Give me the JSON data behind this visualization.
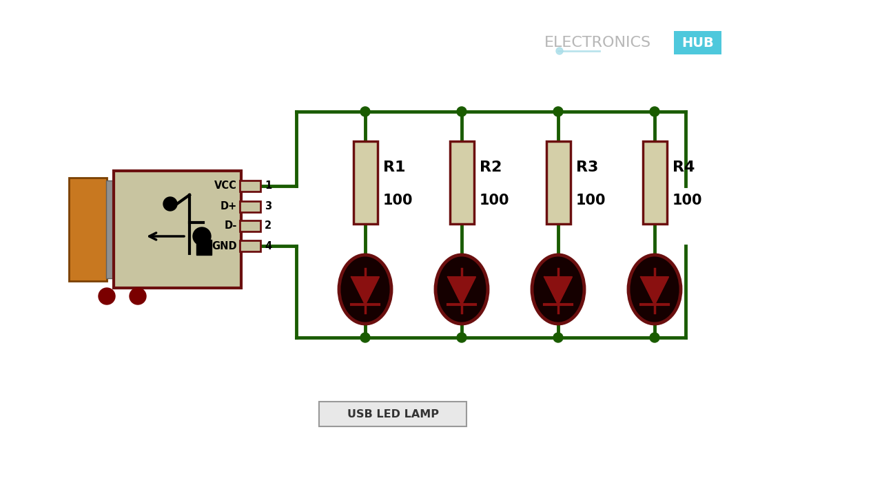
{
  "bg_color": "#ffffff",
  "wire_color": "#1a5c00",
  "wire_lw": 3.5,
  "usb_body_color": "#c8c4a0",
  "usb_border_color": "#6b0f0f",
  "usb_plug_color": "#c87820",
  "resistor_color": "#d4cfa8",
  "resistor_border": "#6b0f0f",
  "led_body_color": "#150000",
  "led_border_color": "#6b0f0f",
  "led_symbol_color": "#8a1010",
  "node_color": "#1a5c00",
  "pin_labels": [
    "VCC",
    "D+",
    "D-",
    "GND"
  ],
  "pin_nums": [
    "1",
    "3",
    "2",
    "4"
  ],
  "resistor_labels": [
    "R1",
    "R2",
    "R3",
    "R4"
  ],
  "resistor_values": [
    "100",
    "100",
    "100",
    "100"
  ],
  "title": "USB LED LAMP",
  "wm_color": "#b0b0b0",
  "hub_bg": "#5ad0e0"
}
